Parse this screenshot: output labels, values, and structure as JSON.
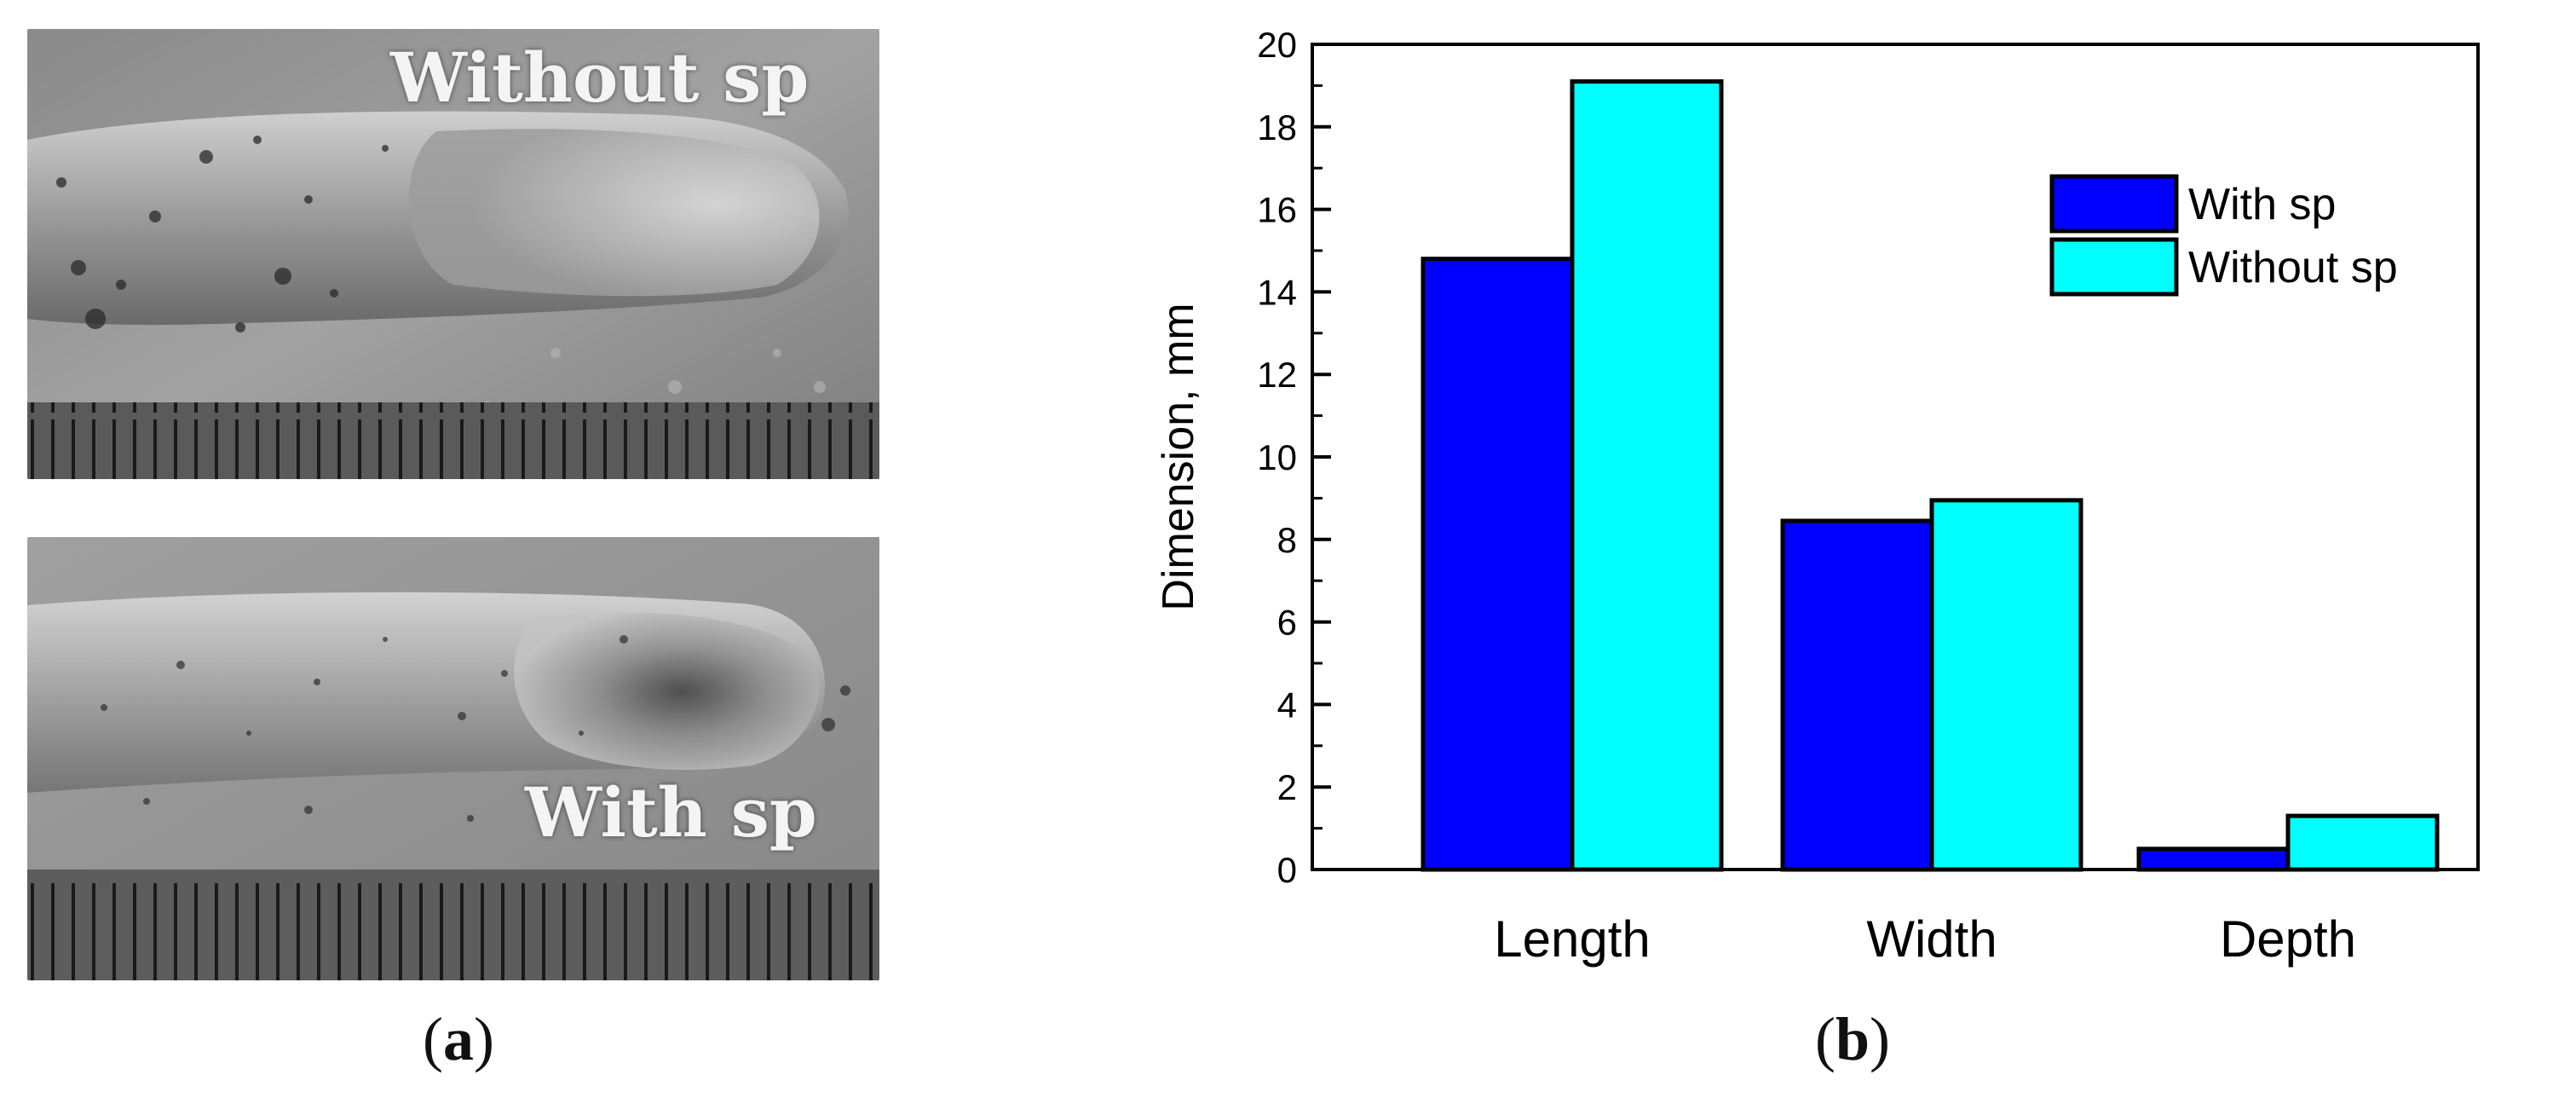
{
  "panel_a": {
    "top_label": "Without sp",
    "bottom_label": "With sp",
    "caption_open": "(",
    "caption_letter": "a",
    "caption_close": ")"
  },
  "panel_b": {
    "caption_open": "(",
    "caption_letter": "b",
    "caption_close": ")"
  },
  "colors": {
    "with_sp": "#0000ff",
    "without_sp": "#00ffff"
  },
  "chart_data": {
    "type": "bar",
    "title": "",
    "xlabel": "",
    "ylabel": "Dimension, mm",
    "categories": [
      "Length",
      "Width",
      "Depth"
    ],
    "series": [
      {
        "name": "With sp",
        "values": [
          14.8,
          8.45,
          0.5
        ]
      },
      {
        "name": "Without sp",
        "values": [
          19.1,
          8.95,
          1.3
        ]
      }
    ],
    "ylim": [
      0,
      20
    ],
    "yticks": [
      "0",
      "2",
      "4",
      "6",
      "8",
      "10",
      "12",
      "14",
      "16",
      "18",
      "20"
    ],
    "legend_position": "top-right",
    "grid": false
  }
}
